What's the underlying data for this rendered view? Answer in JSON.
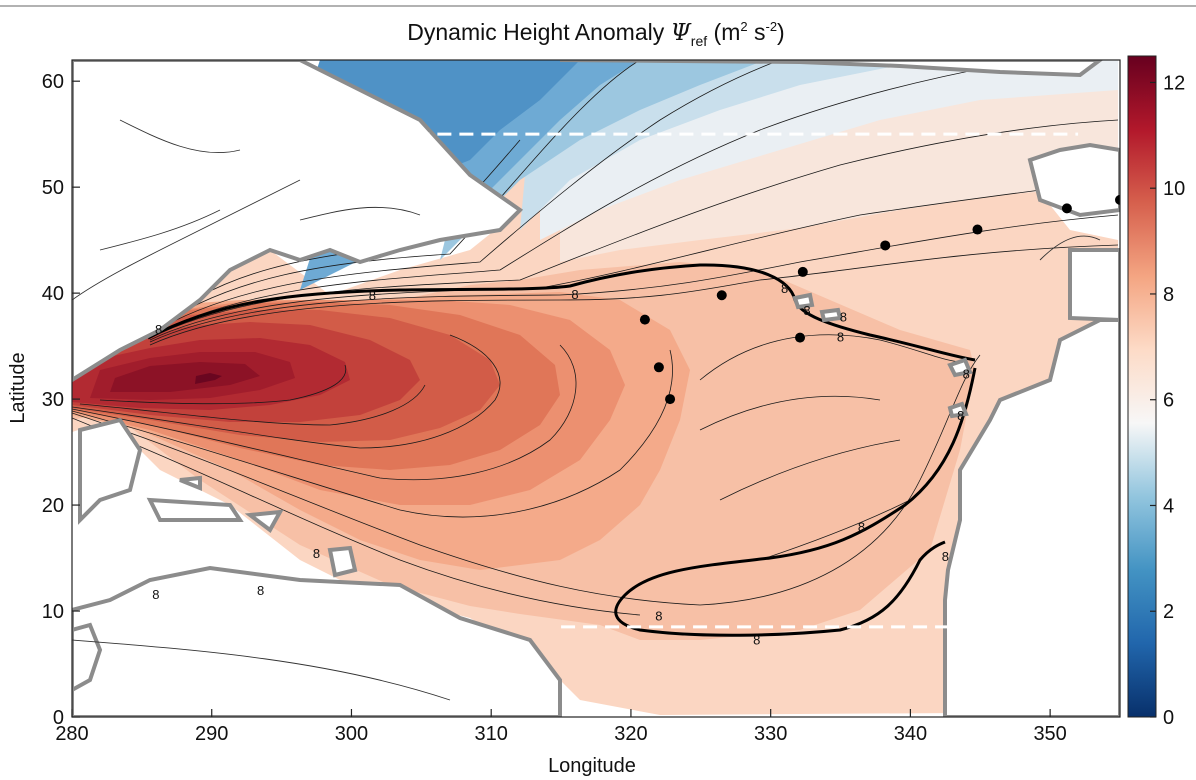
{
  "chart_data": {
    "type": "contour",
    "title": "Dynamic Height Anomaly",
    "title_symbol": "Ψ",
    "title_symbol_sub": "ref",
    "title_units_open": "(m",
    "title_units_sup1": "2",
    "title_units_mid": " s",
    "title_units_sup2": "-2",
    "title_units_close": ")",
    "xlabel": "Longitude",
    "ylabel": "Latitude",
    "xlim": [
      280,
      355
    ],
    "ylim": [
      0,
      62
    ],
    "xticks": [
      280,
      290,
      300,
      310,
      320,
      330,
      340,
      350
    ],
    "yticks": [
      0,
      10,
      20,
      30,
      40,
      50,
      60
    ],
    "colorbar": {
      "min": 0,
      "max": 12.5,
      "ticks": [
        0,
        2,
        4,
        6,
        8,
        10,
        12
      ],
      "colors": [
        "#08306b",
        "#2166ac",
        "#4393c3",
        "#92c5de",
        "#f7f7f7",
        "#fddbc7",
        "#f4a582",
        "#d6604d",
        "#b2182b",
        "#67001f"
      ]
    },
    "highlight_contour": {
      "level": 8,
      "label": "8"
    },
    "contour_labels": [
      {
        "lon": 286.2,
        "lat": 36.6,
        "text": "8"
      },
      {
        "lon": 301.5,
        "lat": 39.8,
        "text": "8"
      },
      {
        "lon": 316.0,
        "lat": 39.9,
        "text": "8"
      },
      {
        "lon": 331.0,
        "lat": 40.5,
        "text": "8"
      },
      {
        "lon": 332.6,
        "lat": 38.4,
        "text": "8"
      },
      {
        "lon": 335.2,
        "lat": 37.8,
        "text": "8"
      },
      {
        "lon": 335.0,
        "lat": 35.9,
        "text": "8"
      },
      {
        "lon": 344.0,
        "lat": 32.4,
        "text": "8"
      },
      {
        "lon": 343.6,
        "lat": 28.5,
        "text": "8"
      },
      {
        "lon": 336.5,
        "lat": 18.0,
        "text": "8"
      },
      {
        "lon": 342.5,
        "lat": 15.2,
        "text": "8"
      },
      {
        "lon": 322.0,
        "lat": 9.6,
        "text": "8"
      },
      {
        "lon": 329.0,
        "lat": 7.3,
        "text": "8"
      },
      {
        "lon": 293.5,
        "lat": 12.0,
        "text": "8"
      },
      {
        "lon": 286.0,
        "lat": 11.6,
        "text": "8"
      },
      {
        "lon": 297.5,
        "lat": 15.5,
        "text": "8"
      }
    ],
    "stations": [
      {
        "lon": 321.0,
        "lat": 37.5
      },
      {
        "lon": 322.0,
        "lat": 33.0
      },
      {
        "lon": 322.8,
        "lat": 30.0
      },
      {
        "lon": 326.5,
        "lat": 39.8
      },
      {
        "lon": 332.3,
        "lat": 42.0
      },
      {
        "lon": 332.1,
        "lat": 35.8
      },
      {
        "lon": 338.2,
        "lat": 44.5
      },
      {
        "lon": 344.8,
        "lat": 46.0
      },
      {
        "lon": 351.2,
        "lat": 48.0
      },
      {
        "lon": 355.0,
        "lat": 48.8
      }
    ],
    "reference_lines": [
      {
        "lon_start": 303.0,
        "lon_end": 352.0,
        "lat": 55.0
      },
      {
        "lon_start": 315.0,
        "lon_end": 344.0,
        "lat": 8.5
      }
    ]
  }
}
